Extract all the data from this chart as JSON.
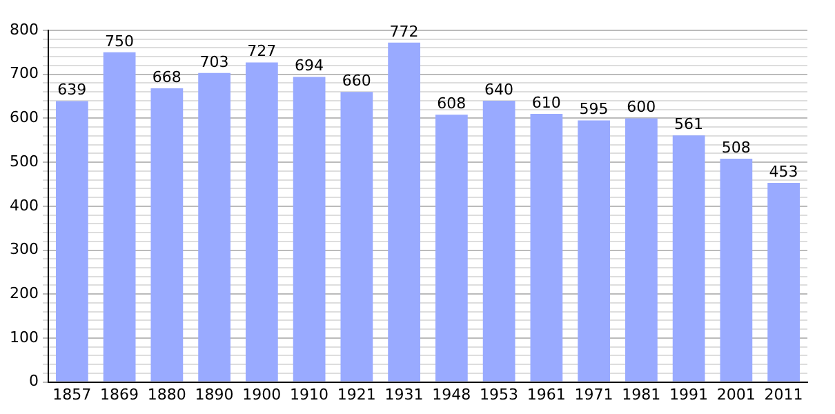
{
  "chart_data": {
    "type": "bar",
    "categories": [
      "1857",
      "1869",
      "1880",
      "1890",
      "1900",
      "1910",
      "1921",
      "1931",
      "1948",
      "1953",
      "1961",
      "1971",
      "1981",
      "1991",
      "2001",
      "2011"
    ],
    "values": [
      639,
      750,
      668,
      703,
      727,
      694,
      660,
      772,
      608,
      640,
      610,
      595,
      600,
      561,
      508,
      453
    ],
    "color": "#99aaff",
    "ylim": [
      0,
      800
    ],
    "yticks": [
      0,
      {
        "value": 20,
        "label": null
      },
      {
        "value": 40,
        "label": null
      },
      {
        "value": 60,
        "label": null
      },
      {
        "value": 80,
        "label": null
      },
      100,
      {
        "value": 120,
        "label": null
      },
      {
        "value": 140,
        "label": null
      },
      {
        "value": 160,
        "label": null
      },
      {
        "value": 180,
        "label": null
      },
      200,
      {
        "value": 220,
        "label": null
      },
      {
        "value": 240,
        "label": null
      },
      {
        "value": 260,
        "label": null
      },
      {
        "value": 280,
        "label": null
      },
      300,
      {
        "value": 320,
        "label": null
      },
      {
        "value": 340,
        "label": null
      },
      {
        "value": 360,
        "label": null
      },
      {
        "value": 380,
        "label": null
      },
      400,
      {
        "value": 420,
        "label": null
      },
      {
        "value": 440,
        "label": null
      },
      {
        "value": 460,
        "label": null
      },
      {
        "value": 480,
        "label": null
      },
      500,
      {
        "value": 520,
        "label": null
      },
      {
        "value": 540,
        "label": null
      },
      {
        "value": 560,
        "label": null
      },
      {
        "value": 580,
        "label": null
      },
      600,
      {
        "value": 620,
        "label": null
      },
      {
        "value": 640,
        "label": null
      },
      {
        "value": 660,
        "label": null
      },
      {
        "value": 680,
        "label": null
      },
      700,
      {
        "value": 720,
        "label": null
      },
      {
        "value": 740,
        "label": null
      },
      {
        "value": 760,
        "label": null
      },
      {
        "value": 780,
        "label": null
      },
      800
    ],
    "grid": "y",
    "data_labels": true
  }
}
